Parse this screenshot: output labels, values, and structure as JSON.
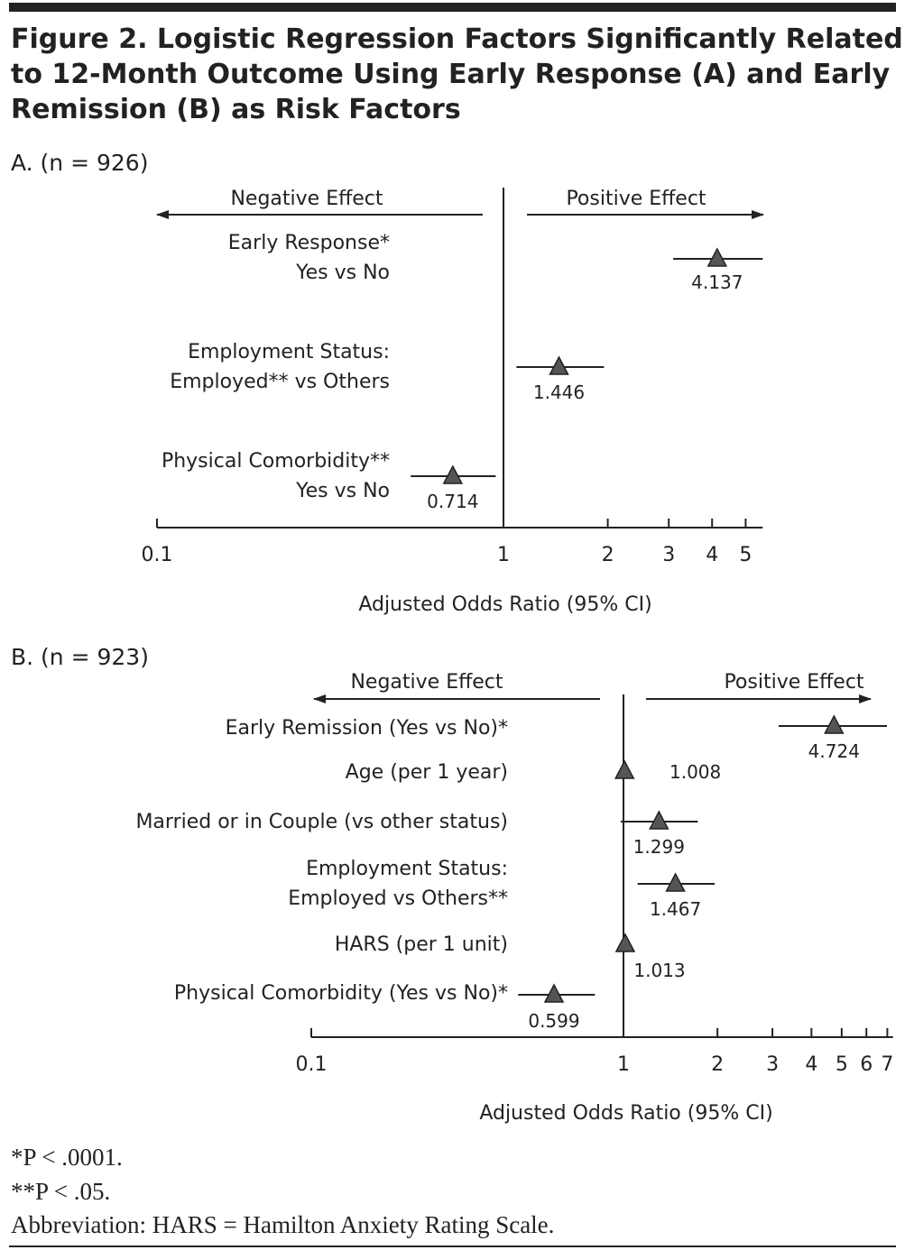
{
  "title_lines": [
    "Figure 2. Logistic Regression Factors Significantly Related",
    "to 12-Month Outcome Using Early Response (A) and Early",
    "Remission (B) as Risk Factors"
  ],
  "chart_data": [
    {
      "type": "forest",
      "panel_label": "A. (n = 926)",
      "xlabel": "Adjusted Odds Ratio (95% CI)",
      "xscale": "log",
      "xlim": [
        0.1,
        5.6
      ],
      "ticks": [
        0.1,
        1,
        2,
        3,
        4,
        5
      ],
      "tick_labels": [
        "0.1",
        "1",
        "2",
        "3",
        "4",
        "5"
      ],
      "negative_label": "Negative Effect",
      "positive_label": "Positive Effect",
      "marker_color": "#555555",
      "rows": [
        {
          "label_lines": [
            "Early Response*",
            "Yes vs No"
          ],
          "or": 4.137,
          "or_label": "4.137",
          "ci": [
            3.09,
            5.6
          ]
        },
        {
          "label_lines": [
            "Employment Status:",
            "Employed** vs Others"
          ],
          "or": 1.446,
          "or_label": "1.446",
          "ci": [
            1.09,
            1.95
          ]
        },
        {
          "label_lines": [
            "Physical Comorbidity**",
            "Yes vs No"
          ],
          "or": 0.714,
          "or_label": "0.714",
          "ci": [
            0.54,
            0.95
          ]
        }
      ]
    },
    {
      "type": "forest",
      "panel_label": "B. (n = 923)",
      "xlabel": "Adjusted Odds Ratio (95% CI)",
      "xscale": "log",
      "xlim": [
        0.1,
        7.3
      ],
      "ticks": [
        0.1,
        1,
        2,
        3,
        4,
        5,
        6,
        7
      ],
      "tick_labels": [
        "0.1",
        "1",
        "2",
        "3",
        "4",
        "5",
        "6",
        "7"
      ],
      "negative_label": "Negative Effect",
      "positive_label": "Positive Effect",
      "marker_color": "#555555",
      "rows": [
        {
          "label_lines": [
            "Early Remission (Yes vs No)*"
          ],
          "or": 4.724,
          "or_label": "4.724",
          "ci": [
            3.14,
            6.98
          ]
        },
        {
          "label_lines": [
            "Age (per 1 year)"
          ],
          "or": 1.008,
          "or_label": "1.008",
          "ci": [
            1.0,
            1.016
          ]
        },
        {
          "label_lines": [
            "Married or in Couple (vs other status)"
          ],
          "or": 1.299,
          "or_label": "1.299",
          "ci": [
            0.98,
            1.73
          ]
        },
        {
          "label_lines": [
            "Employment Status:",
            "Employed vs Others**"
          ],
          "or": 1.467,
          "or_label": "1.467",
          "ci": [
            1.11,
            1.96
          ]
        },
        {
          "label_lines": [
            "HARS (per 1 unit)"
          ],
          "or": 1.013,
          "or_label": "1.013",
          "ci": [
            1.0,
            1.026
          ]
        },
        {
          "label_lines": [
            "Physical Comorbidity (Yes vs No)*"
          ],
          "or": 0.599,
          "or_label": "0.599",
          "ci": [
            0.46,
            0.81
          ]
        }
      ]
    }
  ],
  "footnotes": [
    "*P < .0001.",
    "**P < .05.",
    "Abbreviation: HARS = Hamilton Anxiety Rating Scale."
  ]
}
